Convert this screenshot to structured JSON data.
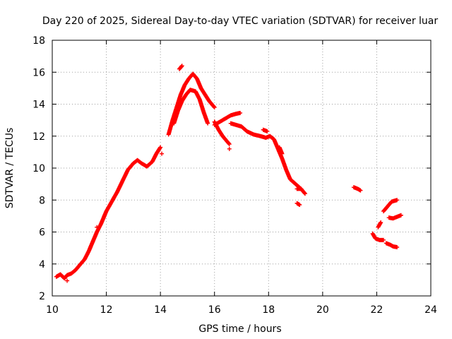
{
  "chart_data": {
    "type": "scatter",
    "title": "Day 220 of 2025, Sidereal Day-to-day VTEC variation (SDTVAR) for receiver luar",
    "xlabel": "GPS time / hours",
    "ylabel": "SDTVAR / TECUs",
    "xlim": [
      10,
      24
    ],
    "ylim": [
      2,
      18
    ],
    "xticks": [
      10,
      12,
      14,
      16,
      18,
      20,
      22,
      24
    ],
    "yticks": [
      2,
      4,
      6,
      8,
      10,
      12,
      14,
      16,
      18
    ],
    "xtick_labels": [
      "10",
      "12",
      "14",
      "16",
      "18",
      "20",
      "22",
      "24"
    ],
    "ytick_labels": [
      "2",
      "4",
      "6",
      "8",
      "10",
      "12",
      "14",
      "16",
      "18"
    ],
    "grid": true,
    "marker": "+",
    "series": [
      {
        "name": "SDTVAR",
        "color": "#ff0000",
        "segments": [
          [
            [
              10.15,
              3.2
            ],
            [
              10.3,
              3.35
            ],
            [
              10.45,
              3.1
            ],
            [
              10.55,
              3.3
            ],
            [
              10.7,
              3.4
            ],
            [
              10.85,
              3.6
            ],
            [
              11.0,
              3.9
            ],
            [
              11.2,
              4.3
            ],
            [
              11.35,
              4.8
            ],
            [
              11.5,
              5.4
            ],
            [
              11.65,
              6.0
            ],
            [
              11.8,
              6.5
            ],
            [
              12.0,
              7.3
            ],
            [
              12.2,
              7.9
            ],
            [
              12.4,
              8.5
            ],
            [
              12.6,
              9.2
            ],
            [
              12.8,
              9.9
            ],
            [
              13.0,
              10.3
            ],
            [
              13.15,
              10.5
            ],
            [
              13.3,
              10.3
            ],
            [
              13.5,
              10.1
            ],
            [
              13.7,
              10.4
            ],
            [
              13.85,
              10.9
            ],
            [
              14.0,
              11.3
            ]
          ],
          [
            [
              14.3,
              12.1
            ],
            [
              14.45,
              13.0
            ],
            [
              14.6,
              13.8
            ],
            [
              14.75,
              14.6
            ],
            [
              14.9,
              15.2
            ],
            [
              15.05,
              15.6
            ],
            [
              15.2,
              15.9
            ],
            [
              15.35,
              15.6
            ],
            [
              15.5,
              15.0
            ],
            [
              15.65,
              14.6
            ],
            [
              15.8,
              14.2
            ],
            [
              16.0,
              13.8
            ]
          ],
          [
            [
              14.5,
              12.8
            ],
            [
              14.65,
              13.6
            ],
            [
              14.8,
              14.2
            ],
            [
              14.95,
              14.6
            ],
            [
              15.1,
              14.9
            ],
            [
              15.3,
              14.8
            ],
            [
              15.45,
              14.3
            ],
            [
              15.6,
              13.5
            ],
            [
              15.75,
              12.8
            ]
          ],
          [
            [
              14.7,
              16.2
            ],
            [
              14.8,
              16.4
            ]
          ],
          [
            [
              16.0,
              12.9
            ],
            [
              16.15,
              12.4
            ],
            [
              16.3,
              12.0
            ],
            [
              16.45,
              11.7
            ],
            [
              16.55,
              11.5
            ]
          ],
          [
            [
              16.0,
              12.7
            ],
            [
              16.2,
              12.9
            ],
            [
              16.4,
              13.1
            ],
            [
              16.6,
              13.3
            ],
            [
              16.8,
              13.4
            ],
            [
              16.95,
              13.45
            ]
          ],
          [
            [
              16.6,
              12.8
            ],
            [
              16.8,
              12.7
            ],
            [
              17.0,
              12.6
            ],
            [
              17.2,
              12.3
            ],
            [
              17.45,
              12.1
            ],
            [
              17.7,
              12.0
            ],
            [
              17.9,
              11.9
            ],
            [
              18.05,
              12.0
            ],
            [
              18.2,
              11.8
            ],
            [
              18.35,
              11.2
            ],
            [
              18.5,
              10.6
            ],
            [
              18.65,
              9.9
            ],
            [
              18.8,
              9.3
            ],
            [
              19.0,
              9.0
            ],
            [
              19.2,
              8.7
            ],
            [
              19.35,
              8.4
            ]
          ],
          [
            [
              17.8,
              12.4
            ],
            [
              17.95,
              12.3
            ]
          ],
          [
            [
              18.4,
              11.3
            ],
            [
              18.5,
              10.9
            ]
          ],
          [
            [
              19.05,
              8.7
            ],
            [
              19.2,
              8.7
            ]
          ],
          [
            [
              19.05,
              7.8
            ],
            [
              19.15,
              7.7
            ]
          ],
          [
            [
              21.15,
              8.8
            ],
            [
              21.3,
              8.7
            ],
            [
              21.4,
              8.6
            ]
          ],
          [
            [
              21.85,
              5.9
            ],
            [
              21.95,
              5.6
            ],
            [
              22.1,
              5.5
            ],
            [
              22.25,
              5.5
            ]
          ],
          [
            [
              22.35,
              5.3
            ],
            [
              22.5,
              5.2
            ],
            [
              22.6,
              5.1
            ],
            [
              22.75,
              5.05
            ]
          ],
          [
            [
              22.05,
              6.3
            ],
            [
              22.15,
              6.6
            ]
          ],
          [
            [
              22.25,
              7.3
            ],
            [
              22.4,
              7.6
            ],
            [
              22.55,
              7.9
            ],
            [
              22.75,
              8.0
            ]
          ],
          [
            [
              22.45,
              6.9
            ],
            [
              22.6,
              6.85
            ],
            [
              22.75,
              6.95
            ],
            [
              22.9,
              7.05
            ]
          ],
          [
            [
              16.55,
              11.2
            ]
          ],
          [
            [
              14.05,
              10.9
            ]
          ],
          [
            [
              11.65,
              6.3
            ]
          ],
          [
            [
              10.55,
              2.95
            ]
          ]
        ]
      }
    ]
  }
}
